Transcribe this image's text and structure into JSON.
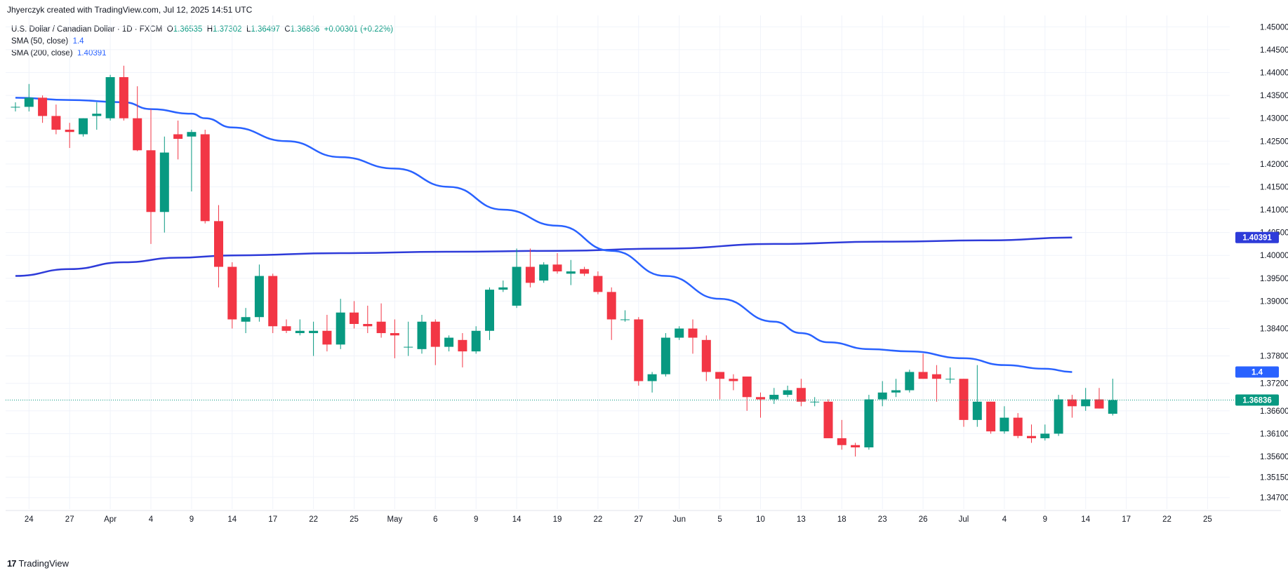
{
  "header": {
    "attribution": "Jhyerczyk created with TradingView.com, Jul 12, 2025 14:51 UTC"
  },
  "legend": {
    "symbol": "U.S. Dollar / Canadian Dollar · 1D · FXCM",
    "o_label": "O",
    "o_value": "1.36535",
    "h_label": "H",
    "h_value": "1.37302",
    "l_label": "L",
    "l_value": "1.36497",
    "c_label": "C",
    "c_value": "1.36836",
    "change": "+0.00301 (+0.22%)",
    "sma50_label": "SMA (50, close)",
    "sma50_value": "1.4",
    "sma200_label": "SMA (200, close)",
    "sma200_value": "1.40391"
  },
  "footer": {
    "brand": "TradingView",
    "logo_text": "17"
  },
  "colors": {
    "up": "#089981",
    "down": "#f23645",
    "sma50": "#2962ff",
    "sma200": "#2e3bd9",
    "grid": "#f0f3fa",
    "axis_text": "#131722"
  },
  "chart_data": {
    "type": "candlestick",
    "ylim": [
      1.3445,
      1.4525
    ],
    "y_ticks": [
      "1.45000",
      "1.44500",
      "1.44000",
      "1.43500",
      "1.43000",
      "1.42500",
      "1.42000",
      "1.41500",
      "1.41000",
      "1.40500",
      "1.40000",
      "1.39500",
      "1.39000",
      "1.38400",
      "1.37800",
      "1.37200",
      "1.36600",
      "1.36100",
      "1.35600",
      "1.35150",
      "1.34700"
    ],
    "x_ticks": [
      {
        "i": 1,
        "label": "24"
      },
      {
        "i": 4,
        "label": "27"
      },
      {
        "i": 7,
        "label": "Apr"
      },
      {
        "i": 10,
        "label": "4"
      },
      {
        "i": 13,
        "label": "9"
      },
      {
        "i": 16,
        "label": "14"
      },
      {
        "i": 19,
        "label": "17"
      },
      {
        "i": 22,
        "label": "22"
      },
      {
        "i": 25,
        "label": "25"
      },
      {
        "i": 28,
        "label": "May"
      },
      {
        "i": 31,
        "label": "6"
      },
      {
        "i": 34,
        "label": "9"
      },
      {
        "i": 37,
        "label": "14"
      },
      {
        "i": 40,
        "label": "19"
      },
      {
        "i": 43,
        "label": "22"
      },
      {
        "i": 46,
        "label": "27"
      },
      {
        "i": 49,
        "label": "Jun"
      },
      {
        "i": 52,
        "label": "5"
      },
      {
        "i": 55,
        "label": "10"
      },
      {
        "i": 58,
        "label": "13"
      },
      {
        "i": 61,
        "label": "18"
      },
      {
        "i": 64,
        "label": "23"
      },
      {
        "i": 67,
        "label": "26"
      },
      {
        "i": 70,
        "label": "Jul"
      },
      {
        "i": 73,
        "label": "4"
      },
      {
        "i": 76,
        "label": "9"
      },
      {
        "i": 79,
        "label": "14"
      },
      {
        "i": 82,
        "label": "17"
      },
      {
        "i": 85,
        "label": "22"
      },
      {
        "i": 88,
        "label": "25"
      }
    ],
    "candles": [
      {
        "o": 1.4325,
        "h": 1.4335,
        "l": 1.4315,
        "c": 1.4325
      },
      {
        "o": 1.4325,
        "h": 1.4375,
        "l": 1.4315,
        "c": 1.4345
      },
      {
        "o": 1.4345,
        "h": 1.435,
        "l": 1.429,
        "c": 1.4305
      },
      {
        "o": 1.4305,
        "h": 1.433,
        "l": 1.4265,
        "c": 1.4275
      },
      {
        "o": 1.4275,
        "h": 1.429,
        "l": 1.4235,
        "c": 1.427
      },
      {
        "o": 1.4265,
        "h": 1.43,
        "l": 1.426,
        "c": 1.43
      },
      {
        "o": 1.4305,
        "h": 1.4335,
        "l": 1.4275,
        "c": 1.431
      },
      {
        "o": 1.43,
        "h": 1.4395,
        "l": 1.4295,
        "c": 1.439
      },
      {
        "o": 1.439,
        "h": 1.4415,
        "l": 1.4295,
        "c": 1.43
      },
      {
        "o": 1.43,
        "h": 1.437,
        "l": 1.4228,
        "c": 1.423
      },
      {
        "o": 1.423,
        "h": 1.432,
        "l": 1.4025,
        "c": 1.4095
      },
      {
        "o": 1.4095,
        "h": 1.426,
        "l": 1.405,
        "c": 1.4225
      },
      {
        "o": 1.4265,
        "h": 1.4295,
        "l": 1.421,
        "c": 1.4255
      },
      {
        "o": 1.426,
        "h": 1.4275,
        "l": 1.414,
        "c": 1.427
      },
      {
        "o": 1.4265,
        "h": 1.4275,
        "l": 1.407,
        "c": 1.4075
      },
      {
        "o": 1.4075,
        "h": 1.411,
        "l": 1.393,
        "c": 1.3975
      },
      {
        "o": 1.3975,
        "h": 1.3985,
        "l": 1.384,
        "c": 1.386
      },
      {
        "o": 1.3855,
        "h": 1.3885,
        "l": 1.383,
        "c": 1.3865
      },
      {
        "o": 1.3865,
        "h": 1.398,
        "l": 1.3855,
        "c": 1.3955
      },
      {
        "o": 1.3955,
        "h": 1.396,
        "l": 1.383,
        "c": 1.3845
      },
      {
        "o": 1.3845,
        "h": 1.386,
        "l": 1.383,
        "c": 1.3835
      },
      {
        "o": 1.383,
        "h": 1.386,
        "l": 1.3825,
        "c": 1.3835
      },
      {
        "o": 1.383,
        "h": 1.3855,
        "l": 1.378,
        "c": 1.3835
      },
      {
        "o": 1.3835,
        "h": 1.387,
        "l": 1.379,
        "c": 1.3805
      },
      {
        "o": 1.3805,
        "h": 1.3905,
        "l": 1.3795,
        "c": 1.3875
      },
      {
        "o": 1.3875,
        "h": 1.39,
        "l": 1.384,
        "c": 1.385
      },
      {
        "o": 1.385,
        "h": 1.389,
        "l": 1.383,
        "c": 1.3845
      },
      {
        "o": 1.3855,
        "h": 1.3895,
        "l": 1.382,
        "c": 1.383
      },
      {
        "o": 1.383,
        "h": 1.386,
        "l": 1.3775,
        "c": 1.3825
      },
      {
        "o": 1.38,
        "h": 1.3855,
        "l": 1.378,
        "c": 1.38
      },
      {
        "o": 1.3795,
        "h": 1.387,
        "l": 1.3785,
        "c": 1.3855
      },
      {
        "o": 1.3855,
        "h": 1.386,
        "l": 1.376,
        "c": 1.38
      },
      {
        "o": 1.38,
        "h": 1.3825,
        "l": 1.379,
        "c": 1.382
      },
      {
        "o": 1.3815,
        "h": 1.383,
        "l": 1.3755,
        "c": 1.379
      },
      {
        "o": 1.379,
        "h": 1.3845,
        "l": 1.3785,
        "c": 1.3835
      },
      {
        "o": 1.3835,
        "h": 1.393,
        "l": 1.3815,
        "c": 1.3925
      },
      {
        "o": 1.3925,
        "h": 1.3945,
        "l": 1.392,
        "c": 1.393
      },
      {
        "o": 1.389,
        "h": 1.4015,
        "l": 1.3885,
        "c": 1.3975
      },
      {
        "o": 1.3975,
        "h": 1.4015,
        "l": 1.393,
        "c": 1.394
      },
      {
        "o": 1.3945,
        "h": 1.3985,
        "l": 1.394,
        "c": 1.398
      },
      {
        "o": 1.398,
        "h": 1.4005,
        "l": 1.396,
        "c": 1.3965
      },
      {
        "o": 1.396,
        "h": 1.399,
        "l": 1.3935,
        "c": 1.3965
      },
      {
        "o": 1.397,
        "h": 1.3975,
        "l": 1.3955,
        "c": 1.396
      },
      {
        "o": 1.3955,
        "h": 1.3965,
        "l": 1.3915,
        "c": 1.392
      },
      {
        "o": 1.392,
        "h": 1.393,
        "l": 1.3815,
        "c": 1.386
      },
      {
        "o": 1.386,
        "h": 1.388,
        "l": 1.3855,
        "c": 1.386
      },
      {
        "o": 1.386,
        "h": 1.3865,
        "l": 1.3715,
        "c": 1.3725
      },
      {
        "o": 1.3725,
        "h": 1.3745,
        "l": 1.37,
        "c": 1.374
      },
      {
        "o": 1.374,
        "h": 1.383,
        "l": 1.3735,
        "c": 1.382
      },
      {
        "o": 1.382,
        "h": 1.3845,
        "l": 1.3815,
        "c": 1.384
      },
      {
        "o": 1.384,
        "h": 1.386,
        "l": 1.3785,
        "c": 1.382
      },
      {
        "o": 1.3815,
        "h": 1.3825,
        "l": 1.3725,
        "c": 1.3745
      },
      {
        "o": 1.3745,
        "h": 1.3745,
        "l": 1.3685,
        "c": 1.373
      },
      {
        "o": 1.373,
        "h": 1.374,
        "l": 1.3705,
        "c": 1.3725
      },
      {
        "o": 1.3735,
        "h": 1.3735,
        "l": 1.366,
        "c": 1.369
      },
      {
        "o": 1.369,
        "h": 1.37,
        "l": 1.3645,
        "c": 1.3685
      },
      {
        "o": 1.3685,
        "h": 1.371,
        "l": 1.3675,
        "c": 1.3695
      },
      {
        "o": 1.3695,
        "h": 1.3715,
        "l": 1.369,
        "c": 1.3705
      },
      {
        "o": 1.371,
        "h": 1.373,
        "l": 1.367,
        "c": 1.368
      },
      {
        "o": 1.368,
        "h": 1.369,
        "l": 1.367,
        "c": 1.368
      },
      {
        "o": 1.368,
        "h": 1.3685,
        "l": 1.36,
        "c": 1.36
      },
      {
        "o": 1.36,
        "h": 1.364,
        "l": 1.3575,
        "c": 1.3585
      },
      {
        "o": 1.3585,
        "h": 1.359,
        "l": 1.356,
        "c": 1.358
      },
      {
        "o": 1.358,
        "h": 1.3695,
        "l": 1.3575,
        "c": 1.3685
      },
      {
        "o": 1.3685,
        "h": 1.3725,
        "l": 1.367,
        "c": 1.37
      },
      {
        "o": 1.37,
        "h": 1.373,
        "l": 1.369,
        "c": 1.3705
      },
      {
        "o": 1.3705,
        "h": 1.375,
        "l": 1.37,
        "c": 1.3745
      },
      {
        "o": 1.3745,
        "h": 1.3785,
        "l": 1.373,
        "c": 1.373
      },
      {
        "o": 1.374,
        "h": 1.376,
        "l": 1.368,
        "c": 1.373
      },
      {
        "o": 1.373,
        "h": 1.3755,
        "l": 1.372,
        "c": 1.373
      },
      {
        "o": 1.373,
        "h": 1.373,
        "l": 1.3625,
        "c": 1.364
      },
      {
        "o": 1.364,
        "h": 1.376,
        "l": 1.3625,
        "c": 1.368
      },
      {
        "o": 1.368,
        "h": 1.368,
        "l": 1.361,
        "c": 1.3615
      },
      {
        "o": 1.3615,
        "h": 1.367,
        "l": 1.361,
        "c": 1.3645
      },
      {
        "o": 1.3645,
        "h": 1.3655,
        "l": 1.36,
        "c": 1.3605
      },
      {
        "o": 1.3605,
        "h": 1.363,
        "l": 1.359,
        "c": 1.36
      },
      {
        "o": 1.36,
        "h": 1.363,
        "l": 1.3595,
        "c": 1.361
      },
      {
        "o": 1.361,
        "h": 1.3695,
        "l": 1.3605,
        "c": 1.3685
      },
      {
        "o": 1.3685,
        "h": 1.3695,
        "l": 1.3645,
        "c": 1.367
      },
      {
        "o": 1.367,
        "h": 1.371,
        "l": 1.366,
        "c": 1.3685
      },
      {
        "o": 1.3685,
        "h": 1.371,
        "l": 1.3665,
        "c": 1.3665
      },
      {
        "o": 1.36535,
        "h": 1.37302,
        "l": 1.36497,
        "c": 1.36836
      }
    ],
    "sma50": [
      [
        0,
        1.4345
      ],
      [
        4,
        1.434
      ],
      [
        8,
        1.4335
      ],
      [
        10,
        1.432
      ],
      [
        13,
        1.431
      ],
      [
        14,
        1.43
      ],
      [
        16,
        1.428
      ],
      [
        20,
        1.425
      ],
      [
        24,
        1.4215
      ],
      [
        28,
        1.419
      ],
      [
        32,
        1.415
      ],
      [
        36,
        1.41
      ],
      [
        40,
        1.4065
      ],
      [
        44,
        1.401
      ],
      [
        48,
        1.3955
      ],
      [
        52,
        1.3905
      ],
      [
        56,
        1.3855
      ],
      [
        58,
        1.383
      ],
      [
        60,
        1.381
      ],
      [
        63,
        1.3795
      ],
      [
        66,
        1.379
      ],
      [
        70,
        1.3775
      ],
      [
        73,
        1.376
      ],
      [
        76,
        1.3752
      ],
      [
        78,
        1.3745
      ]
    ],
    "sma200": [
      [
        0,
        1.3955
      ],
      [
        4,
        1.397
      ],
      [
        8,
        1.3985
      ],
      [
        12,
        1.3995
      ],
      [
        16,
        1.4
      ],
      [
        24,
        1.4005
      ],
      [
        32,
        1.4008
      ],
      [
        40,
        1.401
      ],
      [
        48,
        1.4015
      ],
      [
        56,
        1.4025
      ],
      [
        64,
        1.403
      ],
      [
        72,
        1.4033
      ],
      [
        78,
        1.4039
      ]
    ],
    "price_labels": {
      "sma200": "1.40391",
      "sma50": "1.4",
      "last": "1.36836"
    }
  }
}
